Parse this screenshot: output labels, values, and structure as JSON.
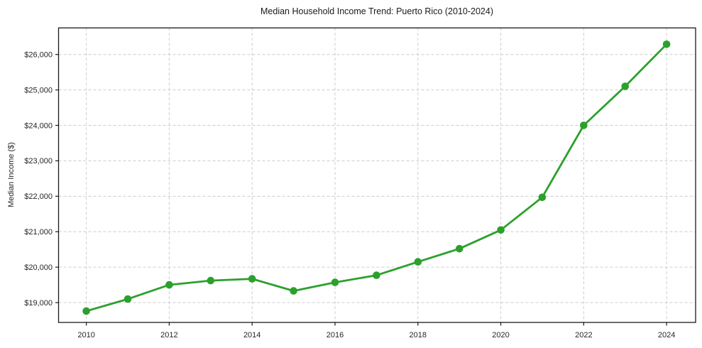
{
  "figure": {
    "background": "#ffffff"
  },
  "chart_data": {
    "type": "line",
    "title": "Median Household Income Trend: Puerto Rico (2010-2024)",
    "xlabel": "",
    "ylabel": "Median Income ($)",
    "x": [
      2010,
      2011,
      2012,
      2013,
      2014,
      2015,
      2016,
      2017,
      2018,
      2019,
      2020,
      2021,
      2022,
      2023,
      2024
    ],
    "values": [
      18760,
      19100,
      19500,
      19620,
      19670,
      19330,
      19570,
      19770,
      20150,
      20520,
      21050,
      21970,
      24000,
      25100,
      26290
    ],
    "xlim": [
      2009.33,
      2024.7
    ],
    "ylim": [
      18440,
      26750
    ],
    "xticks": [
      2010,
      2012,
      2014,
      2016,
      2018,
      2020,
      2022,
      2024
    ],
    "xtick_labels": [
      "2010",
      "2012",
      "2014",
      "2016",
      "2018",
      "2020",
      "2022",
      "2024"
    ],
    "yticks": [
      19000,
      20000,
      21000,
      22000,
      23000,
      24000,
      25000,
      26000
    ],
    "ytick_labels": [
      "$19,000",
      "$20,000",
      "$21,000",
      "$22,000",
      "$23,000",
      "$24,000",
      "$25,000",
      "$26,000"
    ],
    "grid": true,
    "grid_style": "dashed",
    "legend": "none",
    "marker": "circle",
    "colors": {
      "line": "#2ca02c",
      "marker": "#2ca02c",
      "grid": "#cccccc",
      "spine": "#1a1a1a",
      "text": "#262626"
    }
  }
}
